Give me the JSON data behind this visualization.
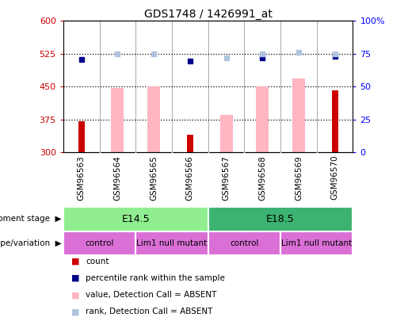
{
  "title": "GDS1748 / 1426991_at",
  "samples": [
    "GSM96563",
    "GSM96564",
    "GSM96565",
    "GSM96566",
    "GSM96567",
    "GSM96568",
    "GSM96569",
    "GSM96570"
  ],
  "bar_values_pink": [
    null,
    447,
    450,
    null,
    385,
    450,
    468,
    null
  ],
  "bar_values_red": [
    372,
    null,
    null,
    340,
    null,
    null,
    null,
    442
  ],
  "dot_values_blue": [
    512,
    null,
    null,
    508,
    null,
    515,
    null,
    520
  ],
  "dot_values_lightblue": [
    null,
    524,
    524,
    null,
    516,
    524,
    528,
    524
  ],
  "ylim_left": [
    300,
    600
  ],
  "ylim_right": [
    0,
    100
  ],
  "yticks_left": [
    300,
    375,
    450,
    525,
    600
  ],
  "ytick_labels_left": [
    "300",
    "375",
    "450",
    "525",
    "600"
  ],
  "yticks_right": [
    0,
    25,
    50,
    75,
    100
  ],
  "ytick_labels_right": [
    "0",
    "25",
    "50",
    "75",
    "100%"
  ],
  "hlines": [
    375,
    450,
    525
  ],
  "color_red": "#cc0000",
  "color_pink": "#ffb6c1",
  "color_blue": "#00008b",
  "color_lightblue": "#b0c4de",
  "color_dev_light": "#90ee90",
  "color_dev_dark": "#32cd32",
  "color_geno": "#da70d6",
  "color_xtick_bg": "#c0c0c0",
  "dev_groups": [
    {
      "label": "E14.5",
      "start": 0,
      "end": 4,
      "color": "#90ee90"
    },
    {
      "label": "E18.5",
      "start": 4,
      "end": 8,
      "color": "#3cb371"
    }
  ],
  "geno_groups": [
    {
      "label": "control",
      "start": 0,
      "end": 2,
      "color": "#da70d6"
    },
    {
      "label": "Lim1 null mutant",
      "start": 2,
      "end": 4,
      "color": "#da70d6"
    },
    {
      "label": "control",
      "start": 4,
      "end": 6,
      "color": "#da70d6"
    },
    {
      "label": "Lim1 null mutant",
      "start": 6,
      "end": 8,
      "color": "#da70d6"
    }
  ],
  "legend_items": [
    {
      "label": "count",
      "color": "#cc0000"
    },
    {
      "label": "percentile rank within the sample",
      "color": "#00008b"
    },
    {
      "label": "value, Detection Call = ABSENT",
      "color": "#ffb6c1"
    },
    {
      "label": "rank, Detection Call = ABSENT",
      "color": "#b0c4de"
    }
  ]
}
